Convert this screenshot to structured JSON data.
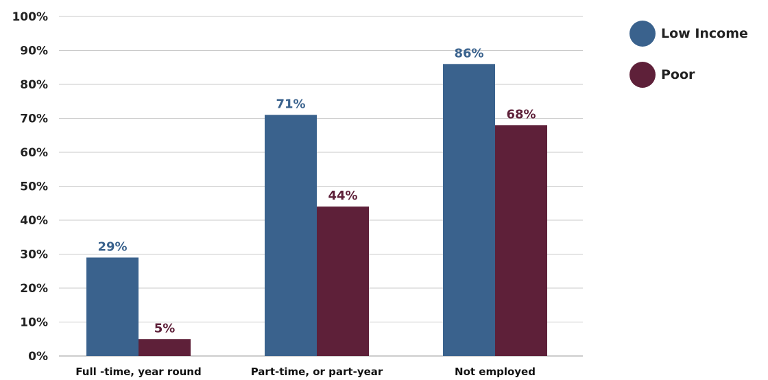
{
  "chart_data": {
    "type": "bar",
    "categories": [
      "Full -time, year round",
      "Part-time, or part-year",
      "Not employed"
    ],
    "series": [
      {
        "name": "Low Income",
        "color": "#3a628d",
        "values": [
          29,
          71,
          86
        ],
        "labels": [
          "29%",
          "71%",
          "86%"
        ]
      },
      {
        "name": "Poor",
        "color": "#5e2039",
        "values": [
          5,
          44,
          68
        ],
        "labels": [
          "5%",
          "44%",
          "68%"
        ]
      }
    ],
    "ylim": [
      0,
      100
    ],
    "yticks": [
      "0%",
      "10%",
      "20%",
      "30%",
      "40%",
      "50%",
      "60%",
      "70%",
      "80%",
      "90%",
      "100%"
    ],
    "grid": true,
    "legend_position": "top-right"
  }
}
